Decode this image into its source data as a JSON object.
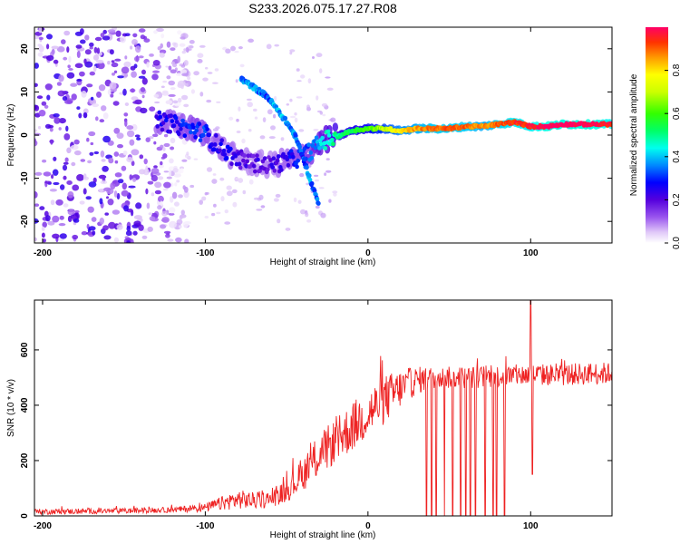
{
  "title": "S233.2026.075.17.27.R08",
  "colors": {
    "snr_line": "#ee2222",
    "frame": "#000000"
  },
  "chart_data": [
    {
      "type": "heatmap",
      "name": "spectrogram",
      "xlabel": "Height of straight line (km)",
      "ylabel": "Frequency (Hz)",
      "xlim": [
        -205,
        150
      ],
      "ylim": [
        -25,
        25
      ],
      "xticks": [
        -200,
        -100,
        0,
        100
      ],
      "yticks": [
        -20,
        -10,
        0,
        10,
        20
      ],
      "colorbar": {
        "label": "Normalized spectral amplitude",
        "range": [
          0.0,
          1.0
        ],
        "ticks": [
          "0.0",
          "0.2",
          "0.4",
          "0.6",
          "0.8"
        ],
        "tick_values": [
          0.0,
          0.2,
          0.4,
          0.6,
          0.8
        ]
      },
      "main_trace": {
        "description_values_in_data_units": true,
        "x": [
          -130,
          -120,
          -110,
          -100,
          -95,
          -90,
          -85,
          -80,
          -75,
          -70,
          -60,
          -50,
          -40,
          -30,
          -25,
          -20,
          -10,
          0,
          10,
          20,
          30,
          40,
          50,
          60,
          70,
          80,
          90,
          100,
          110,
          120,
          130,
          140,
          150
        ],
        "freq": [
          3.5,
          2.5,
          1.5,
          0.5,
          -1.5,
          -3.0,
          -4.5,
          -5.5,
          -6.0,
          -6.5,
          -7.0,
          -6.0,
          -5.0,
          -2.0,
          -1.0,
          -0.5,
          1.0,
          1.5,
          1.5,
          1.0,
          1.5,
          1.5,
          1.5,
          2.0,
          2.0,
          2.5,
          3.0,
          2.0,
          2.0,
          2.5,
          2.5,
          2.5,
          2.5
        ],
        "amp": [
          0.25,
          0.25,
          0.3,
          0.3,
          0.25,
          0.25,
          0.25,
          0.2,
          0.2,
          0.2,
          0.2,
          0.25,
          0.3,
          0.4,
          0.45,
          0.5,
          0.55,
          0.6,
          0.7,
          0.8,
          0.85,
          0.9,
          0.9,
          0.9,
          0.85,
          0.9,
          0.95,
          0.95,
          1.0,
          1.0,
          1.0,
          1.0,
          0.95
        ]
      },
      "secondary_trace": {
        "x": [
          -78,
          -70,
          -62,
          -56,
          -50,
          -45,
          -40,
          -35,
          -30
        ],
        "freq": [
          13,
          11,
          9,
          6,
          3,
          0,
          -5,
          -11,
          -16
        ],
        "amp": [
          0.3,
          0.3,
          0.25,
          0.35,
          0.3,
          0.3,
          0.25,
          0.3,
          0.25
        ]
      },
      "noise_region": {
        "x": [
          -205,
          -125
        ],
        "freq": [
          -25,
          25
        ],
        "amp_range": [
          0.02,
          0.25
        ]
      }
    },
    {
      "type": "line",
      "name": "snr",
      "xlabel": "Height of straight line (km)",
      "ylabel": "SNR (10 * v/v)",
      "xlim": [
        -205,
        150
      ],
      "ylim": [
        0,
        780
      ],
      "xticks": [
        -200,
        -100,
        0,
        100
      ],
      "yticks": [
        0,
        200,
        400,
        600
      ],
      "series": [
        {
          "name": "SNR",
          "x": [
            -205,
            -150,
            -120,
            -100,
            -90,
            -80,
            -70,
            -60,
            -50,
            -40,
            -30,
            -20,
            -10,
            0,
            10,
            20,
            30,
            40,
            60,
            80,
            100,
            120,
            140,
            150
          ],
          "mean": [
            15,
            18,
            22,
            30,
            45,
            60,
            55,
            60,
            90,
            150,
            220,
            270,
            320,
            370,
            420,
            460,
            490,
            500,
            500,
            505,
            510,
            510,
            515,
            515
          ],
          "noise": [
            10,
            10,
            10,
            15,
            25,
            35,
            30,
            30,
            40,
            60,
            80,
            80,
            90,
            90,
            90,
            70,
            50,
            40,
            40,
            40,
            40,
            40,
            40,
            40
          ]
        }
      ],
      "spikes_to_zero_x": [
        36,
        39,
        42,
        47,
        52,
        57,
        60,
        63,
        66,
        72,
        77,
        79,
        84
      ],
      "spike_up_x": 100,
      "spike_up_y": 790,
      "dip_x": 101,
      "dip_y": 150
    }
  ]
}
